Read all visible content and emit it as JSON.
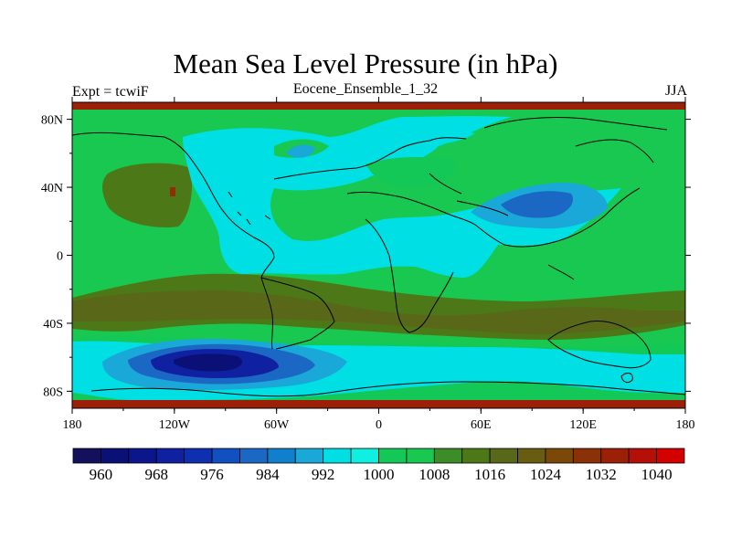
{
  "title": "Mean Sea Level Pressure (in hPa)",
  "left_string": "Expt = tcwiF",
  "center_string": "Eocene_Ensemble_1_32",
  "right_string": "JJA",
  "map": {
    "projection": "cylindrical-equidistant",
    "lon_range": [
      -180,
      180
    ],
    "lat_range": [
      -90,
      90
    ],
    "lon_ticks": [
      {
        "value": -180,
        "label": "180"
      },
      {
        "value": -120,
        "label": "120W"
      },
      {
        "value": -60,
        "label": "60W"
      },
      {
        "value": 0,
        "label": "0"
      },
      {
        "value": 60,
        "label": "60E"
      },
      {
        "value": 120,
        "label": "120E"
      },
      {
        "value": 180,
        "label": "180"
      }
    ],
    "lat_ticks": [
      {
        "value": 80,
        "label": "80N"
      },
      {
        "value": 40,
        "label": "40N"
      },
      {
        "value": 0,
        "label": "0"
      },
      {
        "value": -40,
        "label": "40S"
      },
      {
        "value": -80,
        "label": "80S"
      }
    ]
  },
  "colorbar": {
    "colors": [
      "#15105e",
      "#0b1076",
      "#0c168c",
      "#0f20a0",
      "#0e30b0",
      "#1050c0",
      "#1b68c4",
      "#1180cc",
      "#1aa8d8",
      "#00e0e4",
      "#10f0e0",
      "#14c858",
      "#18c850",
      "#3c8c28",
      "#4c7818",
      "#586818",
      "#685c10",
      "#7c4808",
      "#8c3008",
      "#9c2008",
      "#b41008",
      "#d40000"
    ],
    "labels": [
      "960",
      "968",
      "976",
      "984",
      "992",
      "1000",
      "1008",
      "1016",
      "1024",
      "1032",
      "1040"
    ]
  }
}
